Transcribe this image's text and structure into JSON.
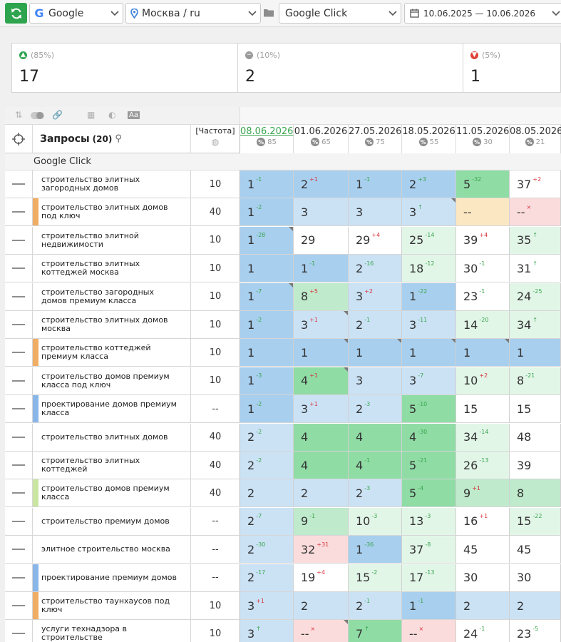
{
  "toolbar": {
    "search_engine": "Google",
    "region": "Москва / ru",
    "project": "Google Click",
    "date_range": "10.06.2025 — 10.06.2026"
  },
  "summary": [
    {
      "percent": "(85%)",
      "count": "17",
      "status": "up",
      "color": "#2ea44f"
    },
    {
      "percent": "(10%)",
      "count": "2",
      "status": "unchanged",
      "color": "#9a9a9a"
    },
    {
      "percent": "(5%)",
      "count": "1",
      "status": "down",
      "color": "#e0433a"
    }
  ],
  "grid": {
    "header": {
      "queries_label": "Запросы",
      "queries_count": "(20)",
      "frequency_label": "[Частота]"
    },
    "group_name": "Google Click",
    "dates": [
      {
        "date": "08.06.2026",
        "count": "85",
        "active": true
      },
      {
        "date": "01.06.2026",
        "count": "65",
        "active": false
      },
      {
        "date": "27.05.2026",
        "count": "75",
        "active": false
      },
      {
        "date": "18.05.2026",
        "count": "55",
        "active": false
      },
      {
        "date": "11.05.2026",
        "count": "30",
        "active": false
      },
      {
        "date": "08.05.2026",
        "count": "21",
        "active": false
      }
    ],
    "rows": [
      {
        "query": "строительство элитных загородных домов",
        "freq": "10",
        "strip": "",
        "cells": [
          {
            "v": "1",
            "d": "-1",
            "bg": "#a8cfee"
          },
          {
            "v": "2",
            "d": "+1",
            "bg": "#a8cfee",
            "dc": "#d9343a"
          },
          {
            "v": "1",
            "d": "-1",
            "bg": "#a8cfee"
          },
          {
            "v": "2",
            "d": "+3",
            "bg": "#a8cfee"
          },
          {
            "v": "5",
            "d": "-32",
            "bg": "#8fdca5"
          },
          {
            "v": "37",
            "d": "+2",
            "bg": "#ffffff",
            "dc": "#d9343a"
          }
        ]
      },
      {
        "query": "строительство элитных домов под ключ",
        "freq": "40",
        "strip": "#f0ad64",
        "cells": [
          {
            "v": "1",
            "d": "-2",
            "bg": "#a8cfee"
          },
          {
            "v": "3",
            "d": "",
            "bg": "#cbe2f5"
          },
          {
            "v": "3",
            "d": "",
            "bg": "#cbe2f5"
          },
          {
            "v": "3",
            "d": "↑",
            "bg": "#cbe2f5",
            "corner": true
          },
          {
            "v": "--",
            "d": "",
            "bg": "#fbe8c2"
          },
          {
            "v": "--",
            "d": "×",
            "bg": "#fbdcdc",
            "dc": "#d9343a"
          }
        ]
      },
      {
        "query": "строительство элитной недвижимости",
        "freq": "10",
        "strip": "",
        "cells": [
          {
            "v": "1",
            "d": "-28",
            "bg": "#a8cfee",
            "corner": true
          },
          {
            "v": "29",
            "d": "",
            "bg": "#ffffff"
          },
          {
            "v": "29",
            "d": "+4",
            "bg": "#ffffff",
            "dc": "#d9343a"
          },
          {
            "v": "25",
            "d": "-14",
            "bg": "#e2f6e8"
          },
          {
            "v": "39",
            "d": "+4",
            "bg": "#ffffff",
            "dc": "#d9343a"
          },
          {
            "v": "35",
            "d": "↑",
            "bg": "#e2f6e8"
          }
        ]
      },
      {
        "query": "строительство элитных коттеджей москва",
        "freq": "10",
        "strip": "",
        "cells": [
          {
            "v": "1",
            "d": "",
            "bg": "#a8cfee"
          },
          {
            "v": "1",
            "d": "-1",
            "bg": "#a8cfee"
          },
          {
            "v": "2",
            "d": "-16",
            "bg": "#cbe2f5"
          },
          {
            "v": "18",
            "d": "-12",
            "bg": "#e2f6e8"
          },
          {
            "v": "30",
            "d": "-1",
            "bg": "#ffffff"
          },
          {
            "v": "31",
            "d": "↑",
            "bg": "#ffffff"
          }
        ]
      },
      {
        "query": "строительство загородных домов премиум класса",
        "freq": "10",
        "strip": "",
        "cells": [
          {
            "v": "1",
            "d": "-7",
            "bg": "#a8cfee",
            "corner": true
          },
          {
            "v": "8",
            "d": "+5",
            "bg": "#bfeacb",
            "dc": "#d9343a"
          },
          {
            "v": "3",
            "d": "+2",
            "bg": "#cbe2f5",
            "dc": "#d9343a"
          },
          {
            "v": "1",
            "d": "-22",
            "bg": "#a8cfee"
          },
          {
            "v": "23",
            "d": "-1",
            "bg": "#ffffff"
          },
          {
            "v": "24",
            "d": "-25",
            "bg": "#e2f6e8"
          }
        ]
      },
      {
        "query": "строительство элитных домов москва",
        "freq": "10",
        "strip": "",
        "cells": [
          {
            "v": "1",
            "d": "-2",
            "bg": "#a8cfee"
          },
          {
            "v": "3",
            "d": "+1",
            "bg": "#cbe2f5",
            "dc": "#d9343a",
            "corner": true
          },
          {
            "v": "2",
            "d": "-1",
            "bg": "#cbe2f5"
          },
          {
            "v": "3",
            "d": "-11",
            "bg": "#cbe2f5"
          },
          {
            "v": "14",
            "d": "-20",
            "bg": "#e2f6e8"
          },
          {
            "v": "34",
            "d": "↑",
            "bg": "#e2f6e8"
          }
        ]
      },
      {
        "query": "строительство коттеджей премиум класса",
        "freq": "10",
        "strip": "#f0ad64",
        "cells": [
          {
            "v": "1",
            "d": "",
            "bg": "#a8cfee"
          },
          {
            "v": "1",
            "d": "",
            "bg": "#a8cfee",
            "corner": true
          },
          {
            "v": "1",
            "d": "",
            "bg": "#a8cfee",
            "corner": true
          },
          {
            "v": "1",
            "d": "",
            "bg": "#a8cfee",
            "corner": true
          },
          {
            "v": "1",
            "d": "",
            "bg": "#a8cfee",
            "corner": true
          },
          {
            "v": "1",
            "d": "",
            "bg": "#a8cfee"
          }
        ]
      },
      {
        "query": "строительство домов премиум класса под ключ",
        "freq": "10",
        "strip": "",
        "cells": [
          {
            "v": "1",
            "d": "-3",
            "bg": "#a8cfee"
          },
          {
            "v": "4",
            "d": "+1",
            "bg": "#8fdca5",
            "dc": "#d9343a",
            "corner": true
          },
          {
            "v": "3",
            "d": "",
            "bg": "#cbe2f5"
          },
          {
            "v": "3",
            "d": "-7",
            "bg": "#cbe2f5"
          },
          {
            "v": "10",
            "d": "+2",
            "bg": "#e2f6e8",
            "dc": "#d9343a"
          },
          {
            "v": "8",
            "d": "-21",
            "bg": "#e2f6e8"
          }
        ]
      },
      {
        "query": "проектирование домов премиум класса",
        "freq": "--",
        "strip": "#89b6e8",
        "cells": [
          {
            "v": "1",
            "d": "-2",
            "bg": "#a8cfee"
          },
          {
            "v": "3",
            "d": "+1",
            "bg": "#cbe2f5",
            "dc": "#d9343a"
          },
          {
            "v": "2",
            "d": "-3",
            "bg": "#cbe2f5"
          },
          {
            "v": "5",
            "d": "-10",
            "bg": "#8fdca5"
          },
          {
            "v": "15",
            "d": "",
            "bg": "#ffffff"
          },
          {
            "v": "15",
            "d": "",
            "bg": "#ffffff"
          }
        ]
      },
      {
        "query": "строительство элитных домов",
        "freq": "40",
        "strip": "",
        "cells": [
          {
            "v": "2",
            "d": "-2",
            "bg": "#cbe2f5"
          },
          {
            "v": "4",
            "d": "",
            "bg": "#8fdca5"
          },
          {
            "v": "4",
            "d": "",
            "bg": "#8fdca5"
          },
          {
            "v": "4",
            "d": "-30",
            "bg": "#8fdca5"
          },
          {
            "v": "34",
            "d": "-14",
            "bg": "#e2f6e8"
          },
          {
            "v": "48",
            "d": "",
            "bg": "#ffffff"
          }
        ]
      },
      {
        "query": "строительство элитных коттеджей",
        "freq": "40",
        "strip": "",
        "cells": [
          {
            "v": "2",
            "d": "-2",
            "bg": "#cbe2f5"
          },
          {
            "v": "4",
            "d": "",
            "bg": "#8fdca5"
          },
          {
            "v": "4",
            "d": "-1",
            "bg": "#8fdca5"
          },
          {
            "v": "5",
            "d": "-21",
            "bg": "#8fdca5"
          },
          {
            "v": "26",
            "d": "-13",
            "bg": "#e2f6e8"
          },
          {
            "v": "39",
            "d": "",
            "bg": "#ffffff"
          }
        ]
      },
      {
        "query": "строительство домов премиум класса",
        "freq": "40",
        "strip": "#c8e6a0",
        "cells": [
          {
            "v": "2",
            "d": "",
            "bg": "#cbe2f5"
          },
          {
            "v": "2",
            "d": "",
            "bg": "#cbe2f5"
          },
          {
            "v": "2",
            "d": "-3",
            "bg": "#cbe2f5"
          },
          {
            "v": "5",
            "d": "-4",
            "bg": "#8fdca5"
          },
          {
            "v": "9",
            "d": "+1",
            "bg": "#bfeacb",
            "dc": "#d9343a"
          },
          {
            "v": "8",
            "d": "",
            "bg": "#bfeacb"
          }
        ]
      },
      {
        "query": "строительство премиум домов",
        "freq": "--",
        "strip": "",
        "cells": [
          {
            "v": "2",
            "d": "-7",
            "bg": "#cbe2f5"
          },
          {
            "v": "9",
            "d": "-1",
            "bg": "#bfeacb"
          },
          {
            "v": "10",
            "d": "-3",
            "bg": "#e2f6e8"
          },
          {
            "v": "13",
            "d": "-3",
            "bg": "#e2f6e8"
          },
          {
            "v": "16",
            "d": "+1",
            "bg": "#ffffff",
            "dc": "#d9343a"
          },
          {
            "v": "15",
            "d": "-22",
            "bg": "#e2f6e8"
          }
        ]
      },
      {
        "query": "элитное строительство москва",
        "freq": "--",
        "strip": "",
        "cells": [
          {
            "v": "2",
            "d": "-30",
            "bg": "#cbe2f5"
          },
          {
            "v": "32",
            "d": "+31",
            "bg": "#fbdcdc",
            "dc": "#d9343a"
          },
          {
            "v": "1",
            "d": "-36",
            "bg": "#a8cfee"
          },
          {
            "v": "37",
            "d": "-8",
            "bg": "#e2f6e8"
          },
          {
            "v": "45",
            "d": "",
            "bg": "#ffffff"
          },
          {
            "v": "45",
            "d": "",
            "bg": "#ffffff"
          }
        ]
      },
      {
        "query": "проектирование премиум домов",
        "freq": "--",
        "strip": "#89b6e8",
        "cells": [
          {
            "v": "2",
            "d": "-17",
            "bg": "#cbe2f5"
          },
          {
            "v": "19",
            "d": "+4",
            "bg": "#ffffff",
            "dc": "#d9343a"
          },
          {
            "v": "15",
            "d": "-2",
            "bg": "#e2f6e8"
          },
          {
            "v": "17",
            "d": "-13",
            "bg": "#e2f6e8"
          },
          {
            "v": "30",
            "d": "",
            "bg": "#ffffff"
          },
          {
            "v": "30",
            "d": "",
            "bg": "#ffffff"
          }
        ]
      },
      {
        "query": "строительство таунхаусов под ключ",
        "freq": "10",
        "strip": "#f0ad64",
        "cells": [
          {
            "v": "3",
            "d": "+1",
            "bg": "#cbe2f5",
            "dc": "#d9343a"
          },
          {
            "v": "2",
            "d": "",
            "bg": "#cbe2f5"
          },
          {
            "v": "2",
            "d": "-1",
            "bg": "#cbe2f5"
          },
          {
            "v": "1",
            "d": "-1",
            "bg": "#a8cfee"
          },
          {
            "v": "2",
            "d": "",
            "bg": "#cbe2f5"
          },
          {
            "v": "2",
            "d": "",
            "bg": "#cbe2f5"
          }
        ]
      },
      {
        "query": "услуги технадзора в строительстве",
        "freq": "10",
        "strip": "",
        "cells": [
          {
            "v": "3",
            "d": "↑",
            "bg": "#cbe2f5"
          },
          {
            "v": "--",
            "d": "×",
            "bg": "#fbdcdc",
            "dc": "#d9343a",
            "corner": true
          },
          {
            "v": "7",
            "d": "↑",
            "bg": "#8fdca5"
          },
          {
            "v": "--",
            "d": "×",
            "bg": "#fbdcdc",
            "dc": "#d9343a"
          },
          {
            "v": "24",
            "d": "-1",
            "bg": "#ffffff"
          },
          {
            "v": "23",
            "d": "-5",
            "bg": "#ffffff"
          }
        ]
      }
    ]
  }
}
